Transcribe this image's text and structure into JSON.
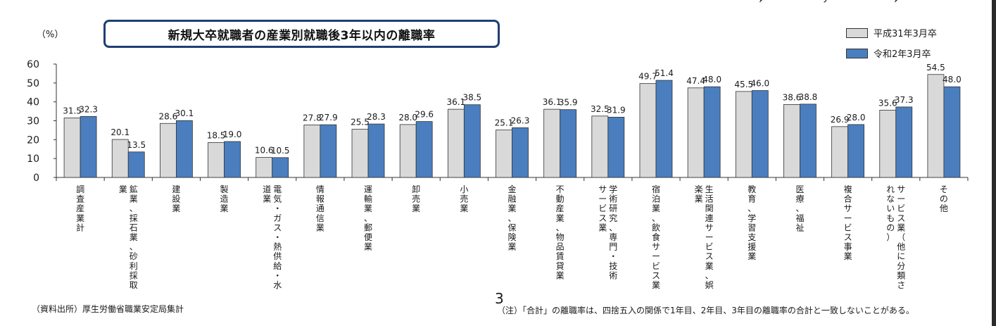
{
  "top_clipped": [
    "10",
    "50",
    "10"
  ],
  "unit": "（%）",
  "title": "新規大卒就職者の産業別就職後3年以内の離職率",
  "source": "（資料出所）厚生労働省職業安定局集計",
  "page_number": "3",
  "note": "（注）「合計」の離職率は、四捨五入の関係で1年目、2年目、3年目の離職率の合計と一致しないことがある。",
  "colors": {
    "series1": "#d9d9d9",
    "series2": "#4a7ebf",
    "title_border": "#1f3f73"
  },
  "chart_data": {
    "type": "bar",
    "title": "新規大卒就職者の産業別就職後3年以内の離職率",
    "ylabel": "（%）",
    "ylim": [
      0,
      60
    ],
    "yticks": [
      0,
      10,
      20,
      30,
      40,
      50,
      60
    ],
    "grid": false,
    "legend_position": "top-right",
    "categories": [
      [
        "調査産業計"
      ],
      [
        "鉱業、採石業、砂利採取",
        "業"
      ],
      [
        "建設業"
      ],
      [
        "製造業"
      ],
      [
        "電気・ガス・熱供給・水",
        "道業"
      ],
      [
        "情報通信業"
      ],
      [
        "運輸業、郵便業"
      ],
      [
        "卸売業"
      ],
      [
        "小売業"
      ],
      [
        "金融業、保険業"
      ],
      [
        "不動産業、物品賃貸業"
      ],
      [
        "学術研究、専門・技術",
        "サービス業"
      ],
      [
        "宿泊業、飲食サービス業"
      ],
      [
        "生活関連サービス業、娯",
        "楽業"
      ],
      [
        "教育、学習支援業"
      ],
      [
        "医療、福祉"
      ],
      [
        "複合サービス事業"
      ],
      [
        "サービス業（他に分類さ",
        "れないもの）"
      ],
      [
        "その他"
      ]
    ],
    "series": [
      {
        "name": "平成31年3月卒",
        "values": [
          31.5,
          20.1,
          28.6,
          18.5,
          10.6,
          27.8,
          25.5,
          28.0,
          36.1,
          25.1,
          36.1,
          32.5,
          49.7,
          47.4,
          45.5,
          38.6,
          26.9,
          35.6,
          54.5
        ]
      },
      {
        "name": "令和2年3月卒",
        "values": [
          32.3,
          13.5,
          30.1,
          19.0,
          10.5,
          27.9,
          28.3,
          29.6,
          38.5,
          26.3,
          35.9,
          31.9,
          51.4,
          48.0,
          46.0,
          38.8,
          28.0,
          37.3,
          48.0
        ]
      }
    ],
    "value_labels": [
      [
        "31.5",
        "20.1",
        "28.6",
        "18.5",
        "10.6",
        "27.8",
        "25.5",
        "28.0",
        "36.1",
        "25.1",
        "36.1",
        "32.5",
        "49.7",
        "47.4",
        "45.5",
        "38.6",
        "26.9",
        "35.6",
        "54.5"
      ],
      [
        "32.3",
        "13.5",
        "30.1",
        "19.0",
        "10.5",
        "27.9",
        "28.3",
        "29.6",
        "38.5",
        "26.3",
        "35.9",
        "31.9",
        "51.4",
        "48.0",
        "46.0",
        "38.8",
        "28.0",
        "37.3",
        "48.0"
      ]
    ]
  }
}
